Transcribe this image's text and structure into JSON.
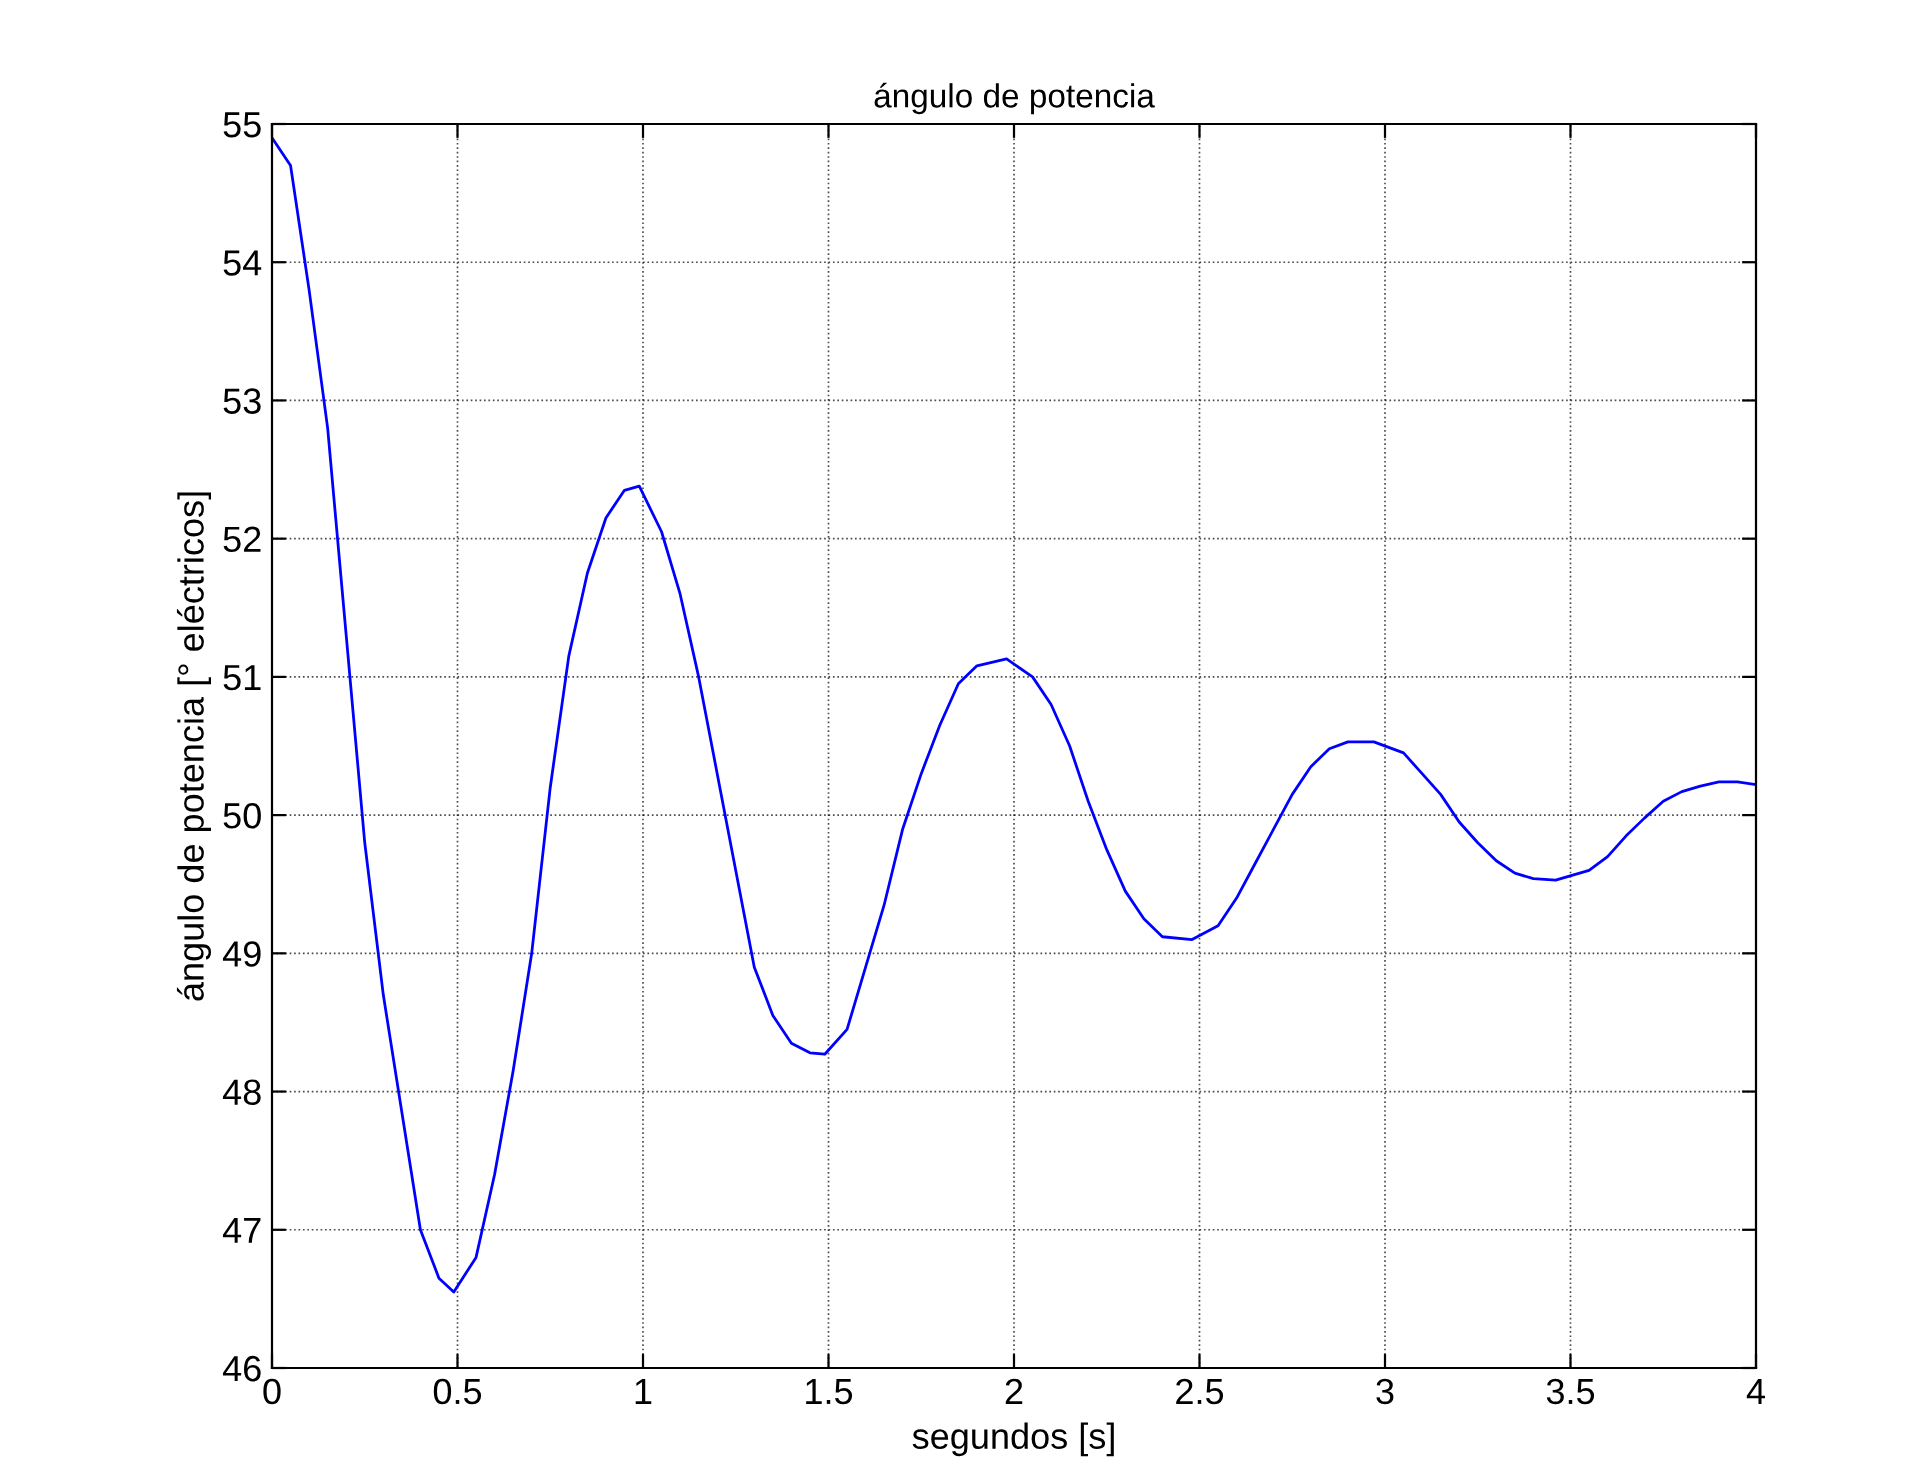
{
  "chart_data": {
    "type": "line",
    "title": "ángulo de potencia",
    "xlabel": "segundos [s]",
    "ylabel": "ángulo de potencia [° eléctricos]",
    "series": [
      {
        "color": "#0000ff",
        "x": [
          0,
          0.05,
          0.1,
          0.15,
          0.2,
          0.25,
          0.3,
          0.35,
          0.4,
          0.45,
          0.49,
          0.55,
          0.6,
          0.65,
          0.7,
          0.75,
          0.8,
          0.85,
          0.9,
          0.95,
          0.99,
          1.05,
          1.1,
          1.15,
          1.2,
          1.25,
          1.3,
          1.35,
          1.4,
          1.45,
          1.49,
          1.55,
          1.6,
          1.65,
          1.7,
          1.75,
          1.8,
          1.85,
          1.9,
          1.98,
          2.05,
          2.1,
          2.15,
          2.2,
          2.25,
          2.3,
          2.35,
          2.4,
          2.48,
          2.55,
          2.6,
          2.65,
          2.7,
          2.75,
          2.8,
          2.85,
          2.9,
          2.97,
          3.05,
          3.1,
          3.15,
          3.2,
          3.25,
          3.3,
          3.35,
          3.4,
          3.46,
          3.55,
          3.6,
          3.65,
          3.7,
          3.75,
          3.8,
          3.85,
          3.9,
          3.95,
          4.0
        ],
        "values": [
          54.9,
          54.7,
          53.8,
          52.8,
          51.3,
          49.8,
          48.7,
          47.85,
          47.0,
          46.65,
          46.55,
          46.8,
          47.4,
          48.15,
          49.0,
          50.2,
          51.15,
          51.75,
          52.15,
          52.35,
          52.38,
          52.05,
          51.6,
          51.0,
          50.3,
          49.6,
          48.9,
          48.55,
          48.35,
          48.28,
          48.27,
          48.45,
          48.9,
          49.35,
          49.9,
          50.3,
          50.65,
          50.95,
          51.08,
          51.13,
          51.0,
          50.8,
          50.5,
          50.1,
          49.75,
          49.45,
          49.25,
          49.12,
          49.1,
          49.2,
          49.4,
          49.65,
          49.9,
          50.15,
          50.35,
          50.48,
          50.53,
          50.53,
          50.45,
          50.3,
          50.15,
          49.95,
          49.8,
          49.67,
          49.58,
          49.54,
          49.53,
          49.6,
          49.7,
          49.85,
          49.98,
          50.1,
          50.17,
          50.21,
          50.24,
          50.24,
          50.22
        ]
      }
    ],
    "xlim": [
      0,
      4
    ],
    "ylim": [
      46,
      55
    ],
    "xticks": [
      0,
      0.5,
      1,
      1.5,
      2,
      2.5,
      3,
      3.5,
      4
    ],
    "yticks": [
      46,
      47,
      48,
      49,
      50,
      51,
      52,
      53,
      54,
      55
    ],
    "grid": true,
    "line_style": "solid",
    "marker": "none"
  }
}
